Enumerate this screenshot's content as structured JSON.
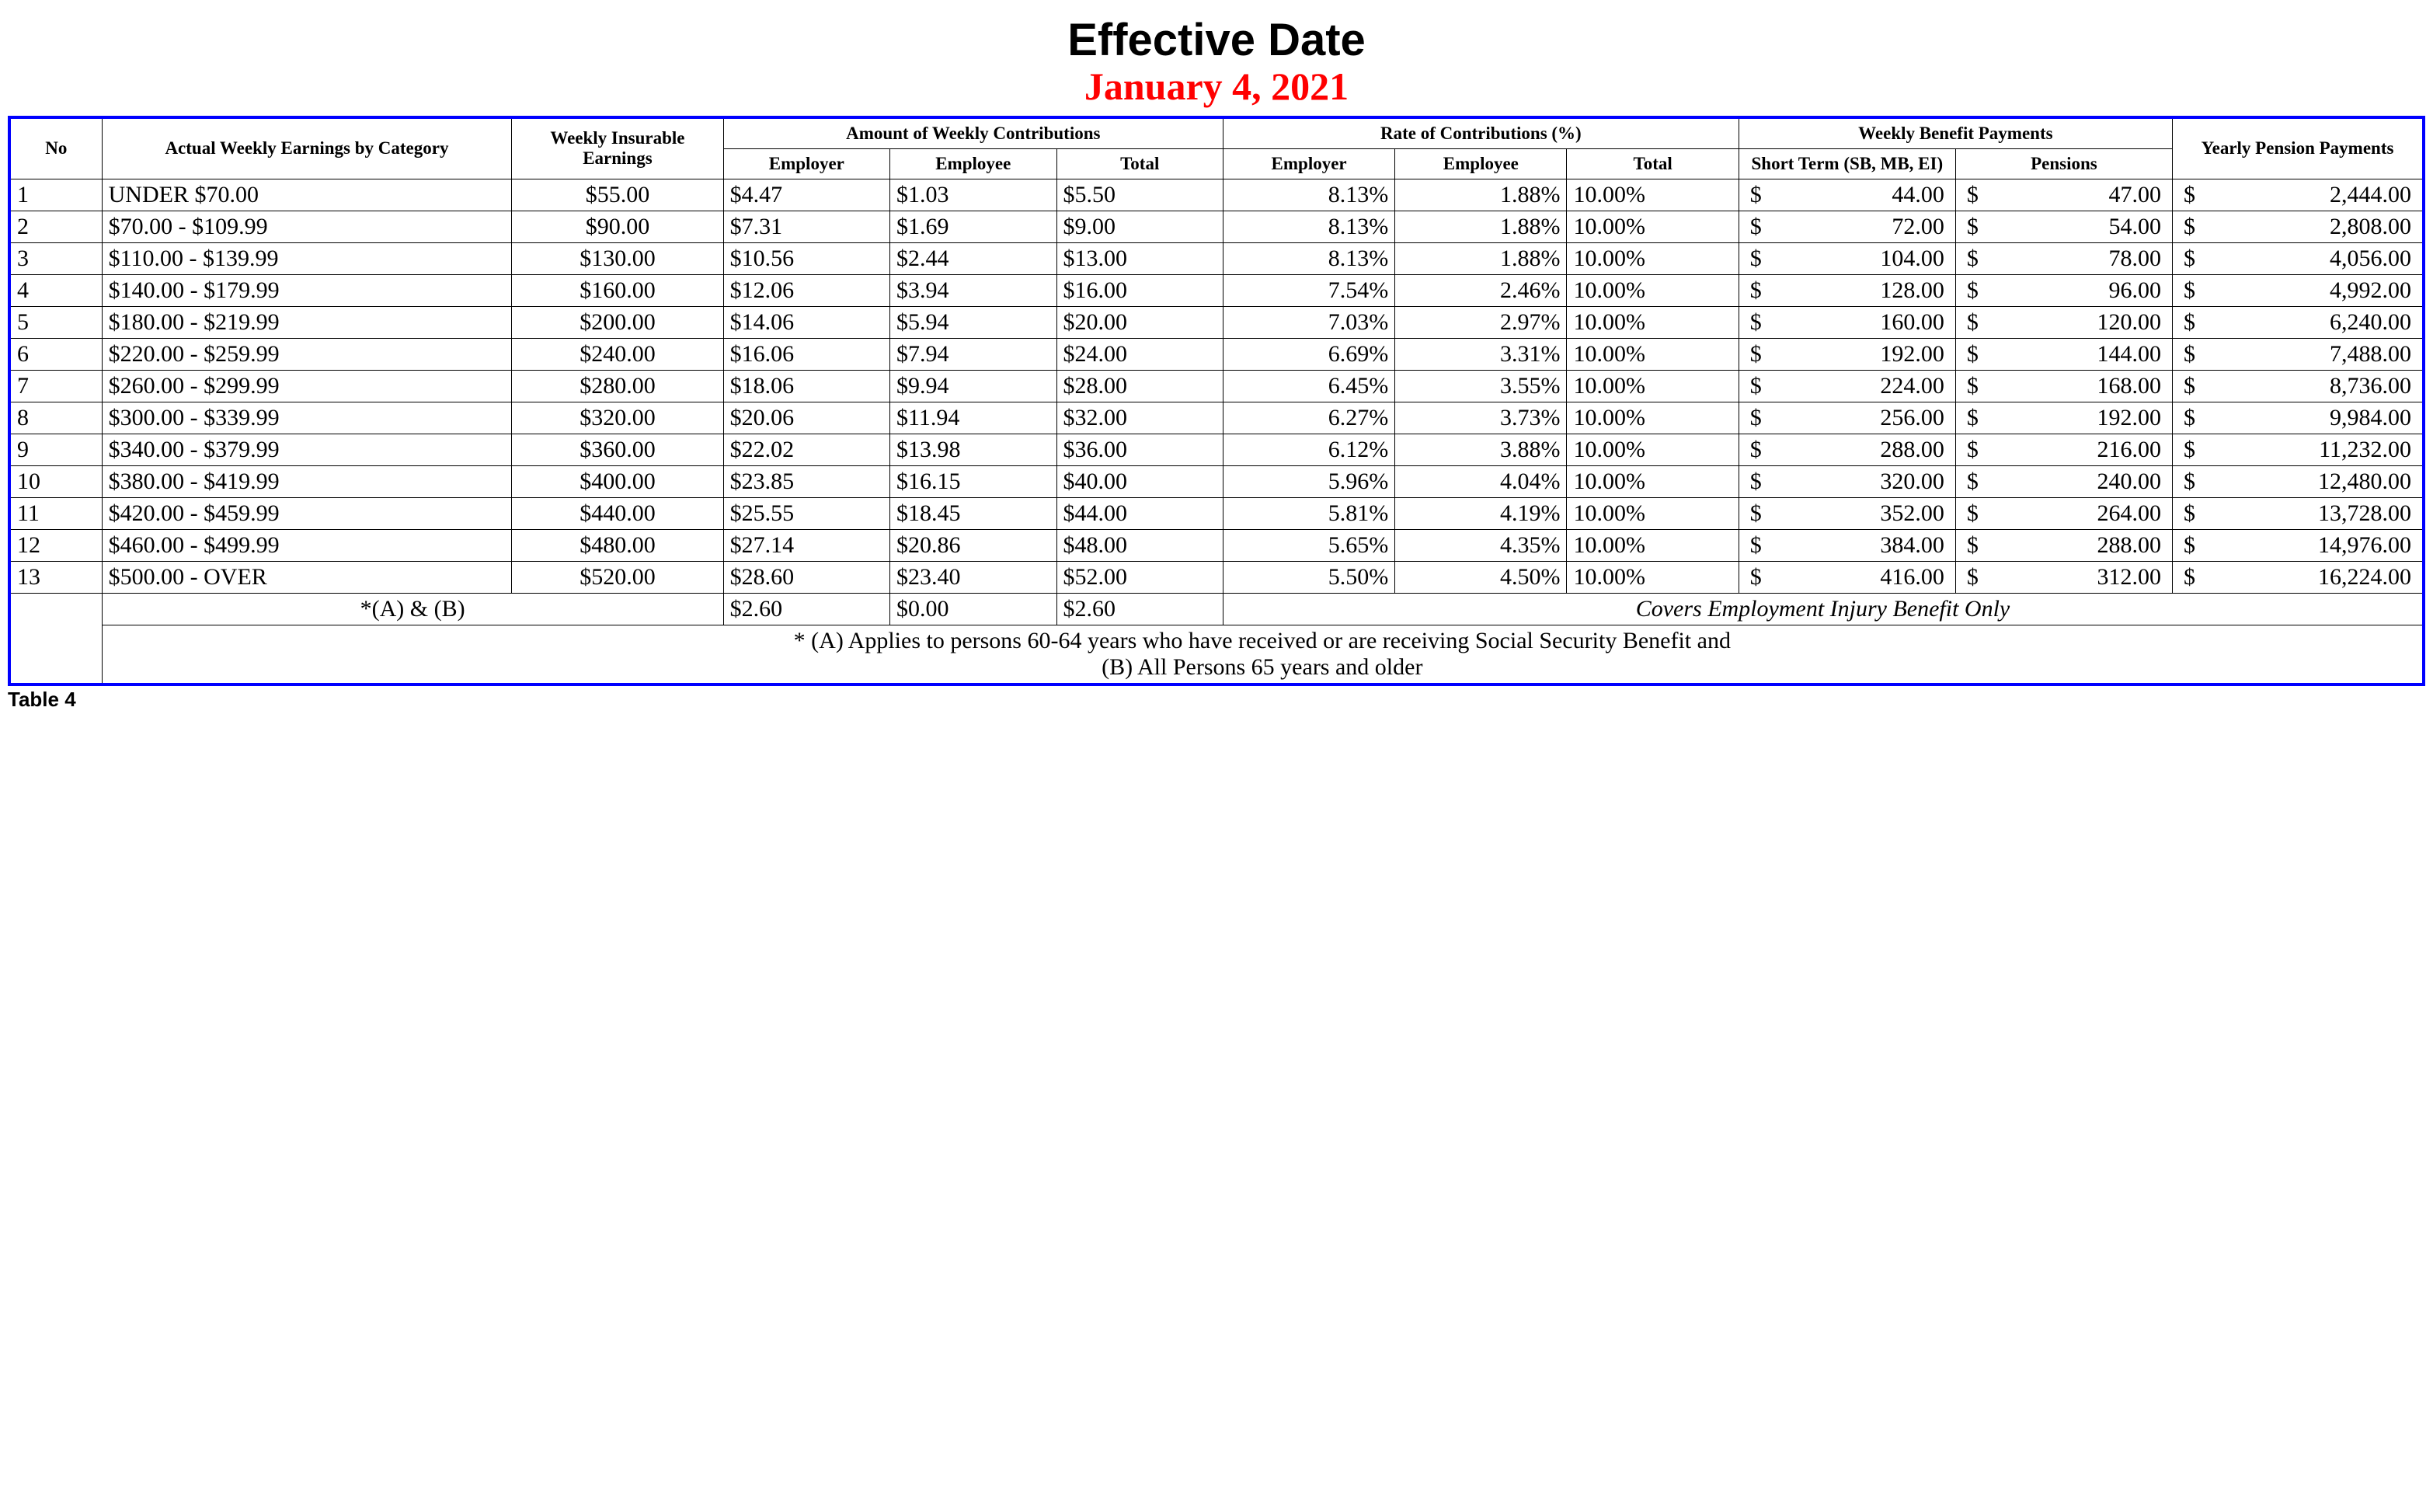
{
  "title": {
    "main": "Effective Date",
    "date": "January 4, 2021",
    "date_color": "#ff0000"
  },
  "table": {
    "border_color": "#0000ff",
    "shaded_bg": "#dcdcdc",
    "headers": {
      "no": "No",
      "actual_earnings": "Actual Weekly Earnings by Category",
      "weekly_insurable": "Weekly Insurable Earnings",
      "amount_contrib": "Amount of Weekly Contributions",
      "rate_contrib": "Rate of Contributions (%)",
      "weekly_benefit": "Weekly Benefit Payments",
      "yearly_pension": "Yearly Pension Payments",
      "employer": "Employer",
      "employee": "Employee",
      "total": "Total",
      "short_term": "Short Term (SB, MB, EI)",
      "pensions": "Pensions"
    },
    "rows": [
      {
        "no": "1",
        "earn": "UNDER $70.00",
        "ins": "$55.00",
        "a_emp": "$4.47",
        "a_ee": "$1.03",
        "a_tot": "$5.50",
        "r_emp": "8.13%",
        "r_ee": "1.88%",
        "r_tot": "10.00%",
        "st": "44.00",
        "pen": "47.00",
        "yp": "2,444.00"
      },
      {
        "no": "2",
        "earn": "$70.00 - $109.99",
        "ins": "$90.00",
        "a_emp": "$7.31",
        "a_ee": "$1.69",
        "a_tot": "$9.00",
        "r_emp": "8.13%",
        "r_ee": "1.88%",
        "r_tot": "10.00%",
        "st": "72.00",
        "pen": "54.00",
        "yp": "2,808.00"
      },
      {
        "no": "3",
        "earn": "$110.00 - $139.99",
        "ins": "$130.00",
        "a_emp": "$10.56",
        "a_ee": "$2.44",
        "a_tot": "$13.00",
        "r_emp": "8.13%",
        "r_ee": "1.88%",
        "r_tot": "10.00%",
        "st": "104.00",
        "pen": "78.00",
        "yp": "4,056.00"
      },
      {
        "no": "4",
        "earn": "$140.00 - $179.99",
        "ins": "$160.00",
        "a_emp": "$12.06",
        "a_ee": "$3.94",
        "a_tot": "$16.00",
        "r_emp": "7.54%",
        "r_ee": "2.46%",
        "r_tot": "10.00%",
        "st": "128.00",
        "pen": "96.00",
        "yp": "4,992.00"
      },
      {
        "no": "5",
        "earn": "$180.00 - $219.99",
        "ins": "$200.00",
        "a_emp": "$14.06",
        "a_ee": "$5.94",
        "a_tot": "$20.00",
        "r_emp": "7.03%",
        "r_ee": "2.97%",
        "r_tot": "10.00%",
        "st": "160.00",
        "pen": "120.00",
        "yp": "6,240.00"
      },
      {
        "no": "6",
        "earn": "$220.00 - $259.99",
        "ins": "$240.00",
        "a_emp": "$16.06",
        "a_ee": "$7.94",
        "a_tot": "$24.00",
        "r_emp": "6.69%",
        "r_ee": "3.31%",
        "r_tot": "10.00%",
        "st": "192.00",
        "pen": "144.00",
        "yp": "7,488.00"
      },
      {
        "no": "7",
        "earn": "$260.00 - $299.99",
        "ins": "$280.00",
        "a_emp": "$18.06",
        "a_ee": "$9.94",
        "a_tot": "$28.00",
        "r_emp": "6.45%",
        "r_ee": "3.55%",
        "r_tot": "10.00%",
        "st": "224.00",
        "pen": "168.00",
        "yp": "8,736.00"
      },
      {
        "no": "8",
        "earn": "$300.00 - $339.99",
        "ins": "$320.00",
        "a_emp": "$20.06",
        "a_ee": "$11.94",
        "a_tot": "$32.00",
        "r_emp": "6.27%",
        "r_ee": "3.73%",
        "r_tot": "10.00%",
        "st": "256.00",
        "pen": "192.00",
        "yp": "9,984.00"
      },
      {
        "no": "9",
        "earn": "$340.00 - $379.99",
        "ins": "$360.00",
        "a_emp": "$22.02",
        "a_ee": "$13.98",
        "a_tot": "$36.00",
        "r_emp": "6.12%",
        "r_ee": "3.88%",
        "r_tot": "10.00%",
        "st": "288.00",
        "pen": "216.00",
        "yp": "11,232.00"
      },
      {
        "no": "10",
        "earn": "$380.00 - $419.99",
        "ins": "$400.00",
        "a_emp": "$23.85",
        "a_ee": "$16.15",
        "a_tot": "$40.00",
        "r_emp": "5.96%",
        "r_ee": "4.04%",
        "r_tot": "10.00%",
        "st": "320.00",
        "pen": "240.00",
        "yp": "12,480.00"
      },
      {
        "no": "11",
        "earn": "$420.00 - $459.99",
        "ins": "$440.00",
        "a_emp": "$25.55",
        "a_ee": "$18.45",
        "a_tot": "$44.00",
        "r_emp": "5.81%",
        "r_ee": "4.19%",
        "r_tot": "10.00%",
        "st": "352.00",
        "pen": "264.00",
        "yp": "13,728.00"
      },
      {
        "no": "12",
        "earn": "$460.00 - $499.99",
        "ins": "$480.00",
        "a_emp": "$27.14",
        "a_ee": "$20.86",
        "a_tot": "$48.00",
        "r_emp": "5.65%",
        "r_ee": "4.35%",
        "r_tot": "10.00%",
        "st": "384.00",
        "pen": "288.00",
        "yp": "14,976.00"
      },
      {
        "no": "13",
        "earn": "$500.00 - OVER",
        "ins": "$520.00",
        "a_emp": "$28.60",
        "a_ee": "$23.40",
        "a_tot": "$52.00",
        "r_emp": "5.50%",
        "r_ee": "4.50%",
        "r_tot": "10.00%",
        "st": "416.00",
        "pen": "312.00",
        "yp": "16,224.00"
      }
    ],
    "ab_row": {
      "label": "*(A) & (B)",
      "a_emp": "$2.60",
      "a_ee": "$0.00",
      "a_tot": "$2.60",
      "note": "Covers Employment Injury Benefit Only"
    },
    "footnote_line1": "* (A) Applies to persons 60-64 years who have received or are receiving Social Security Benefit and",
    "footnote_line2": "(B) All Persons 65 years and older"
  },
  "caption": "Table 4",
  "currency_symbol": "$"
}
